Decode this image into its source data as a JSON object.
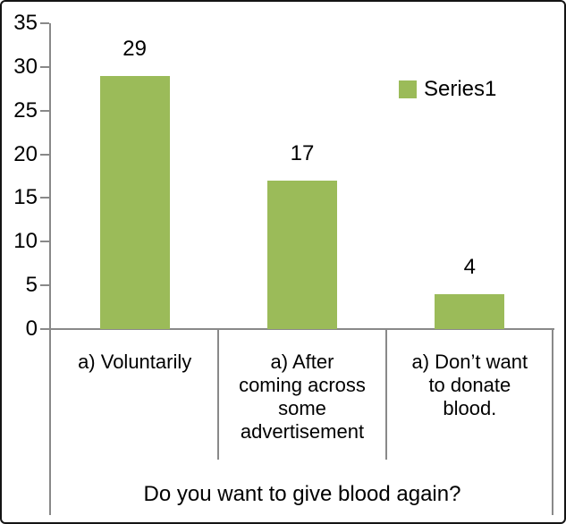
{
  "chart_data": {
    "type": "bar",
    "title": "",
    "xlabel": "Do you want to give blood again?",
    "ylabel": "",
    "ylim": [
      0,
      35
    ],
    "ytick_step": 5,
    "yticks": [
      "35",
      "30",
      "25",
      "20",
      "15",
      "10",
      "5",
      "0"
    ],
    "categories": [
      "a) Voluntarily",
      "a) After coming across some advertisement",
      "a) Don’t want to donate blood."
    ],
    "category_line_breaks": [
      [
        "a) Voluntarily"
      ],
      [
        "a) After",
        "coming across",
        "some",
        "advertisement"
      ],
      [
        "a) Don’t want",
        "to donate",
        "blood."
      ]
    ],
    "series": [
      {
        "name": "Series1",
        "values": [
          29,
          17,
          4
        ]
      }
    ],
    "value_labels": [
      "29",
      "17",
      "4"
    ],
    "legend_position": "top-right",
    "grid": false,
    "colors": {
      "bar": "#9BBB59",
      "axis": "#898989",
      "text": "#000000",
      "border": "#141414",
      "background": "#FFFFFF"
    }
  }
}
